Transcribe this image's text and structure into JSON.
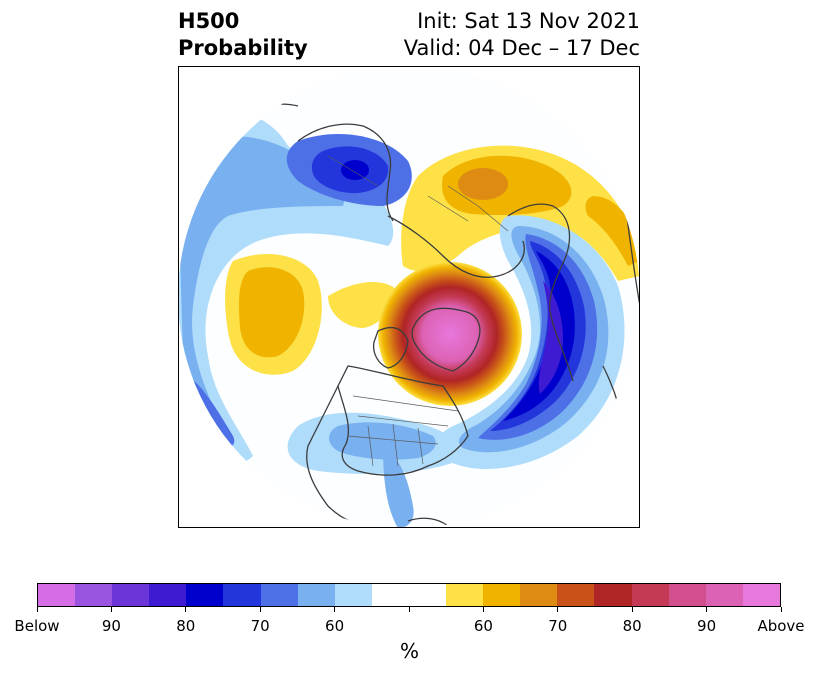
{
  "header": {
    "title_line1": "H500",
    "title_line2": "Probability",
    "init": "Init: Sat 13 Nov 2021",
    "valid": "Valid: 04 Dec – 17 Dec"
  },
  "map": {
    "projection": "north-polar-stereographic",
    "features": [
      "coastlines",
      "country-borders",
      "state-borders"
    ],
    "anomalies": [
      {
        "region": "Greenland / Canadian Arctic",
        "sign": "above",
        "peak_prob_pct": 90
      },
      {
        "region": "Eastern Pacific / Western North America coast",
        "sign": "above",
        "peak_prob_pct": 60
      },
      {
        "region": "Northern Europe / Scandinavia",
        "sign": "above",
        "peak_prob_pct": 65
      },
      {
        "region": "North Atlantic / Western Europe",
        "sign": "below",
        "peak_prob_pct": 85
      },
      {
        "region": "Eastern Siberia",
        "sign": "below",
        "peak_prob_pct": 85
      },
      {
        "region": "Eastern United States",
        "sign": "below",
        "peak_prob_pct": 60
      }
    ]
  },
  "colorbar": {
    "colors": [
      "#d56ee6",
      "#9a54e0",
      "#6b35d8",
      "#3e1bd3",
      "#0000cd",
      "#2236dc",
      "#4e70e6",
      "#78b0f0",
      "#aedcfa",
      "#ffffff",
      "#ffffff",
      "#fde146",
      "#f0b400",
      "#de8b14",
      "#c85218",
      "#b02525",
      "#c43a56",
      "#d04f8c",
      "#dc62b4",
      "#e778dc"
    ],
    "tick_labels": [
      "Below",
      "90",
      "80",
      "70",
      "60",
      "",
      "60",
      "70",
      "80",
      "90",
      "Above"
    ],
    "unit_label": "%"
  }
}
